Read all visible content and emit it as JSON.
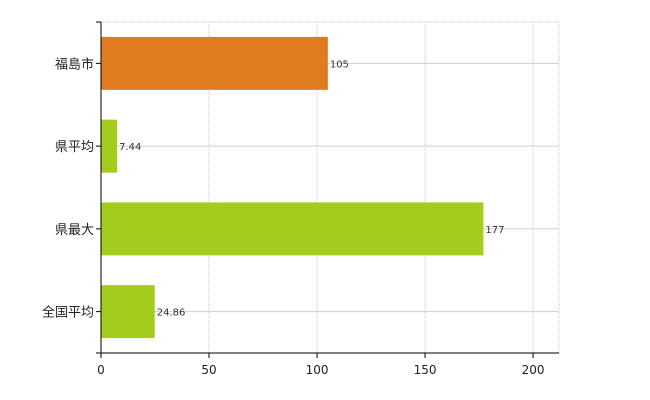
{
  "chart_data": {
    "type": "bar",
    "orientation": "horizontal",
    "title": "",
    "xlabel": "",
    "ylabel": "",
    "categories": [
      "福島市",
      "県平均",
      "県最大",
      "全国平均"
    ],
    "values": [
      105,
      7.44,
      177,
      24.86
    ],
    "value_labels": [
      "105",
      "7.44",
      "177",
      "24.86"
    ],
    "bar_colors": [
      "#e07b1f",
      "#a3cc1e",
      "#a3cc1e",
      "#a3cc1e"
    ],
    "xlim": [
      0,
      212
    ],
    "x_ticks": [
      0,
      50,
      100,
      150,
      200
    ],
    "x_tick_labels": [
      "0",
      "50",
      "100",
      "150",
      "200"
    ],
    "grid": true,
    "legend": "none"
  }
}
